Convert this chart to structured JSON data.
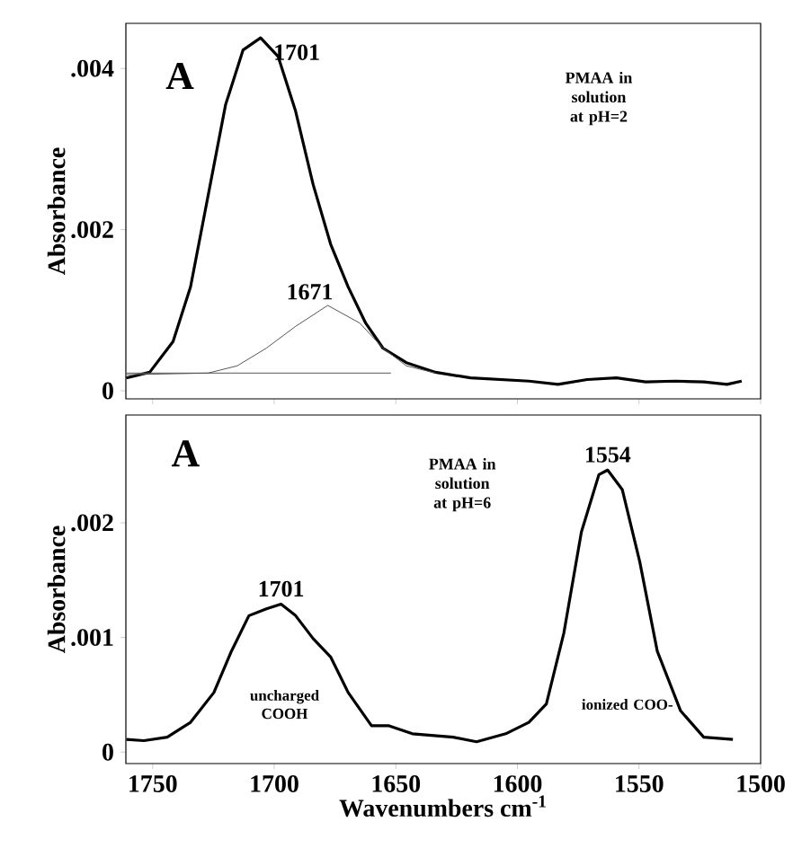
{
  "chart_data": [
    {
      "type": "line",
      "ylabel": "Absorbance",
      "xlim": [
        1761,
        1500
      ],
      "ylim": [
        -0.0001,
        0.00456
      ],
      "xticks": [
        1750,
        1700,
        1650,
        1600,
        1550,
        1500
      ],
      "yticks": [
        {
          "value": 0,
          "label": "0"
        },
        {
          "value": 0.002,
          "label": ".002"
        },
        {
          "value": 0.004,
          "label": ".004"
        }
      ],
      "tick_labels": "y",
      "annotations": [
        "A",
        "PMAA in solution at pH=2",
        {
          "text": "1701",
          "x": 1705.6,
          "y": 0.00438
        },
        {
          "text": "1671",
          "x": 1678,
          "y": 0.00106
        }
      ],
      "series": [
        {
          "color": "#000000",
          "x": [
            1760.8,
            1751.2,
            1741.6,
            1734.4,
            1727.2,
            1720,
            1712.8,
            1705.6,
            1698.4,
            1691.2,
            1684,
            1676.8,
            1669.6,
            1662.4,
            1655.3,
            1645.7,
            1633.7,
            1619.3,
            1595.3,
            1583.3,
            1571.3,
            1559.3,
            1547.3,
            1535.3,
            1523.4,
            1513.8,
            1507.8
          ],
          "values": [
            0.00016,
            0.00023,
            0.00061,
            0.00129,
            0.00242,
            0.00355,
            0.00423,
            0.00438,
            0.00415,
            0.00347,
            0.00256,
            0.00182,
            0.00129,
            0.00084,
            0.00053,
            0.00035,
            0.00023,
            0.00016,
            0.00012,
            8e-05,
            0.00014,
            0.00016,
            0.00011,
            0.00012,
            0.00011,
            8e-05,
            0.00012
          ]
        },
        {
          "color": "#555555",
          "x": [
            1760.8,
            1727.2,
            1715.2,
            1703.2,
            1691.2,
            1678,
            1664.8,
            1655.3,
            1645.7,
            1633.7
          ],
          "values": [
            0.0002,
            0.00022,
            0.00031,
            0.00053,
            0.0008,
            0.00106,
            0.00084,
            0.00053,
            0.00031,
            0.00022
          ]
        },
        {
          "color": "#555555",
          "x": [
            1760.8,
            1652
          ],
          "values": [
            0.00022,
            0.00022
          ]
        }
      ]
    },
    {
      "type": "line",
      "xlabel": "Wavenumbers cm$^{-1}$",
      "ylabel": "Absorbance",
      "xlim": [
        1761,
        1500
      ],
      "ylim": [
        -0.0001,
        0.00294
      ],
      "xticks": [
        1750,
        1700,
        1650,
        1600,
        1550,
        1500
      ],
      "yticks": [
        {
          "value": 0,
          "label": "0"
        },
        {
          "value": 0.001,
          "label": ".001"
        },
        {
          "value": 0.002,
          "label": ".002"
        }
      ],
      "annotations": [
        "A",
        "PMAA in solution at pH=6",
        "uncharged COOH",
        "ionized COO-",
        {
          "text": "1701",
          "x": 1697.2,
          "y": 0.00129
        },
        {
          "text": "1554",
          "x": 1562.9,
          "y": 0.00246
        }
      ],
      "series": [
        {
          "color": "#000000",
          "x": [
            1760.8,
            1753.6,
            1744,
            1734.4,
            1724.8,
            1717.6,
            1710.4,
            1703.2,
            1697.2,
            1691.2,
            1684,
            1676.8,
            1669.6,
            1660,
            1652.8,
            1643.2,
            1626.4,
            1616.8,
            1604.8,
            1595.3,
            1588.1,
            1580.9,
            1573.7,
            1566.5,
            1562.9,
            1556.9,
            1549.7,
            1542.5,
            1532.9,
            1523.4,
            1511.4
          ],
          "values": [
            0.00011,
            0.0001,
            0.00013,
            0.00026,
            0.00052,
            0.00088,
            0.00119,
            0.00125,
            0.00129,
            0.00119,
            0.00099,
            0.00083,
            0.00052,
            0.00023,
            0.00023,
            0.00016,
            0.00013,
            9e-05,
            0.00016,
            0.00026,
            0.00042,
            0.00104,
            0.00192,
            0.00242,
            0.00246,
            0.00229,
            0.00166,
            0.00088,
            0.00036,
            0.00013,
            0.00011
          ]
        }
      ]
    }
  ]
}
